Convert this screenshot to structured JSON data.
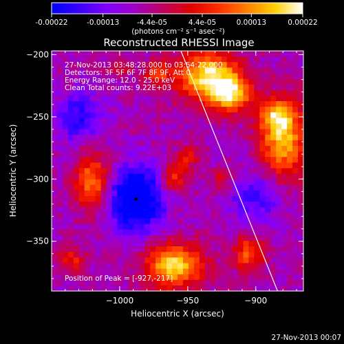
{
  "colorbar": {
    "tick_labels": [
      "-0.00022",
      "-0.00013",
      "-4.4e-05",
      "4.4e-05",
      "0.00013",
      "0.00022"
    ],
    "tick_values": [
      -0.00022,
      -0.00013,
      -4.4e-05,
      4.4e-05,
      0.00013,
      0.00022
    ],
    "range": [
      -0.00022,
      0.00022
    ],
    "units": "(photons cm⁻² s⁻¹ asec⁻²)",
    "colors": [
      "#0000ff",
      "#3a00ff",
      "#8000ff",
      "#a000c0",
      "#c00060",
      "#e00000",
      "#ff3000",
      "#ff8000",
      "#ffd000",
      "#ffffff"
    ]
  },
  "chart_data": {
    "type": "heatmap",
    "title": "Reconstructed RHESSI Image",
    "xlabel": "Heliocentric X (arcsec)",
    "ylabel": "Heliocentric Y (arcsec)",
    "xlim": [
      -1050,
      -865
    ],
    "ylim": [
      -390,
      -197
    ],
    "x_ticks": [
      -1000,
      -950,
      -900
    ],
    "x_tick_labels": [
      "−1000",
      "−950",
      "−900"
    ],
    "y_ticks": [
      -200,
      -250,
      -300,
      -350
    ],
    "y_tick_labels": [
      "−200",
      "−250",
      "−300",
      "−350"
    ],
    "annotations": [
      "27-Nov-2013 03:48:28.000 to 03:54:22.000",
      "Detectors: 3F 5F 6F 7F 8F 9F, Att 0",
      "Energy Range: 12.0 - 25.0 keV",
      "Clean    Total counts: 9.22E+03"
    ],
    "peak_label": "Position of Peak = [-927,-217]",
    "peak": {
      "x": -927,
      "y": -217
    },
    "min_marker": {
      "x": -988,
      "y": -316
    },
    "limb_line": [
      {
        "x": -955,
        "y": -197
      },
      {
        "x": -884,
        "y": -390
      }
    ],
    "blobs": [
      {
        "x": -935,
        "y": -218,
        "sx": 16,
        "sy": 14,
        "a": 1.0
      },
      {
        "x": -918,
        "y": -232,
        "sx": 10,
        "sy": 10,
        "a": 0.8
      },
      {
        "x": -880,
        "y": -268,
        "sx": 12,
        "sy": 22,
        "a": 0.85
      },
      {
        "x": -885,
        "y": -250,
        "sx": 8,
        "sy": 8,
        "a": 0.55
      },
      {
        "x": -1020,
        "y": -302,
        "sx": 9,
        "sy": 16,
        "a": 0.7
      },
      {
        "x": -960,
        "y": -370,
        "sx": 15,
        "sy": 12,
        "a": 0.95
      },
      {
        "x": -960,
        "y": -300,
        "sx": 7,
        "sy": 8,
        "a": 0.5
      },
      {
        "x": -950,
        "y": -282,
        "sx": 6,
        "sy": 6,
        "a": 0.45
      },
      {
        "x": -905,
        "y": -360,
        "sx": 8,
        "sy": 10,
        "a": 0.6
      },
      {
        "x": -972,
        "y": -215,
        "sx": 7,
        "sy": 7,
        "a": 0.45
      },
      {
        "x": -1000,
        "y": -210,
        "sx": 6,
        "sy": 5,
        "a": 0.35
      },
      {
        "x": -1035,
        "y": -365,
        "sx": 7,
        "sy": 7,
        "a": 0.4
      },
      {
        "x": -925,
        "y": -300,
        "sx": 6,
        "sy": 6,
        "a": 0.35
      },
      {
        "x": -988,
        "y": -316,
        "sx": 14,
        "sy": 18,
        "a": -0.9
      },
      {
        "x": -1030,
        "y": -250,
        "sx": 12,
        "sy": 14,
        "a": -0.45
      },
      {
        "x": -900,
        "y": -315,
        "sx": 14,
        "sy": 14,
        "a": -0.4
      }
    ],
    "grid": false
  },
  "timestamp": "27-Nov-2013 00:07"
}
